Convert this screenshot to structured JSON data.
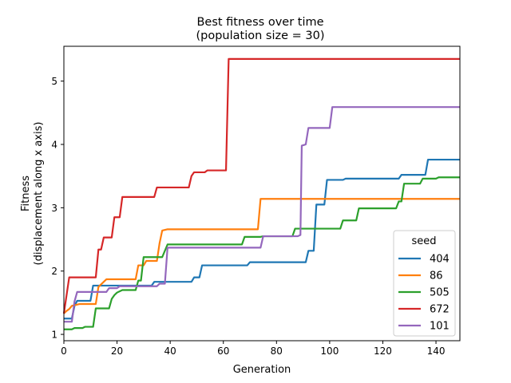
{
  "chart_data": {
    "type": "line",
    "title": "Best fitness over time",
    "subtitle": "(population size = 30)",
    "xlabel": "Generation",
    "ylabel": "Fitness",
    "ylabel2": "(displacement along x axis)",
    "xlim": [
      0,
      149
    ],
    "ylim": [
      0.9,
      5.55
    ],
    "xticks": [
      0,
      20,
      40,
      60,
      80,
      100,
      120,
      140
    ],
    "yticks": [
      1,
      2,
      3,
      4,
      5
    ],
    "grid": false,
    "legend": {
      "title": "seed",
      "placement": "lower-right"
    },
    "series": [
      {
        "name": "404",
        "color": "#1f77b4",
        "points": [
          [
            0,
            1.25
          ],
          [
            3,
            1.25
          ],
          [
            4,
            1.45
          ],
          [
            5,
            1.53
          ],
          [
            10,
            1.53
          ],
          [
            11,
            1.77
          ],
          [
            33,
            1.77
          ],
          [
            34,
            1.83
          ],
          [
            48,
            1.83
          ],
          [
            49,
            1.9
          ],
          [
            51,
            1.9
          ],
          [
            52,
            2.09
          ],
          [
            69,
            2.09
          ],
          [
            70,
            2.14
          ],
          [
            91,
            2.14
          ],
          [
            92,
            2.32
          ],
          [
            94,
            2.32
          ],
          [
            95,
            3.05
          ],
          [
            98,
            3.05
          ],
          [
            99,
            3.44
          ],
          [
            105,
            3.44
          ],
          [
            106,
            3.46
          ],
          [
            126,
            3.46
          ],
          [
            127,
            3.52
          ],
          [
            136,
            3.52
          ],
          [
            137,
            3.76
          ],
          [
            149,
            3.76
          ]
        ]
      },
      {
        "name": "86",
        "color": "#ff7f0e",
        "points": [
          [
            0,
            1.33
          ],
          [
            1,
            1.37
          ],
          [
            2,
            1.4
          ],
          [
            3,
            1.45
          ],
          [
            6,
            1.48
          ],
          [
            12,
            1.48
          ],
          [
            13,
            1.75
          ],
          [
            15,
            1.83
          ],
          [
            16,
            1.87
          ],
          [
            27,
            1.87
          ],
          [
            28,
            2.09
          ],
          [
            30,
            2.09
          ],
          [
            31,
            2.16
          ],
          [
            35,
            2.16
          ],
          [
            36,
            2.44
          ],
          [
            37,
            2.64
          ],
          [
            39,
            2.66
          ],
          [
            73,
            2.66
          ],
          [
            74,
            3.14
          ],
          [
            149,
            3.14
          ]
        ]
      },
      {
        "name": "505",
        "color": "#2ca02c",
        "points": [
          [
            0,
            1.08
          ],
          [
            3,
            1.08
          ],
          [
            4,
            1.1
          ],
          [
            7,
            1.1
          ],
          [
            8,
            1.12
          ],
          [
            11,
            1.12
          ],
          [
            12,
            1.41
          ],
          [
            17,
            1.41
          ],
          [
            18,
            1.56
          ],
          [
            19,
            1.62
          ],
          [
            20,
            1.66
          ],
          [
            22,
            1.7
          ],
          [
            27,
            1.7
          ],
          [
            28,
            1.85
          ],
          [
            29,
            1.85
          ],
          [
            30,
            2.22
          ],
          [
            37,
            2.22
          ],
          [
            39,
            2.42
          ],
          [
            67,
            2.42
          ],
          [
            68,
            2.54
          ],
          [
            74,
            2.54
          ],
          [
            75,
            2.55
          ],
          [
            86,
            2.55
          ],
          [
            87,
            2.67
          ],
          [
            104,
            2.67
          ],
          [
            105,
            2.8
          ],
          [
            110,
            2.8
          ],
          [
            111,
            2.99
          ],
          [
            125,
            2.99
          ],
          [
            126,
            3.1
          ],
          [
            127,
            3.1
          ],
          [
            128,
            3.38
          ],
          [
            134,
            3.38
          ],
          [
            135,
            3.46
          ],
          [
            140,
            3.46
          ],
          [
            141,
            3.48
          ],
          [
            149,
            3.48
          ]
        ]
      },
      {
        "name": "672",
        "color": "#d62728",
        "points": [
          [
            0,
            1.33
          ],
          [
            2,
            1.9
          ],
          [
            12,
            1.9
          ],
          [
            13,
            2.34
          ],
          [
            14,
            2.34
          ],
          [
            15,
            2.53
          ],
          [
            18,
            2.53
          ],
          [
            19,
            2.85
          ],
          [
            21,
            2.85
          ],
          [
            22,
            3.17
          ],
          [
            34,
            3.17
          ],
          [
            35,
            3.32
          ],
          [
            47,
            3.32
          ],
          [
            48,
            3.5
          ],
          [
            49,
            3.56
          ],
          [
            53,
            3.56
          ],
          [
            54,
            3.59
          ],
          [
            61,
            3.59
          ],
          [
            62,
            5.35
          ],
          [
            149,
            5.35
          ]
        ]
      },
      {
        "name": "101",
        "color": "#9467bd",
        "points": [
          [
            0,
            1.2
          ],
          [
            3,
            1.2
          ],
          [
            4,
            1.52
          ],
          [
            5,
            1.67
          ],
          [
            16,
            1.67
          ],
          [
            17,
            1.73
          ],
          [
            20,
            1.73
          ],
          [
            21,
            1.76
          ],
          [
            35,
            1.76
          ],
          [
            36,
            1.8
          ],
          [
            38,
            1.8
          ],
          [
            39,
            2.37
          ],
          [
            74,
            2.37
          ],
          [
            75,
            2.55
          ],
          [
            88,
            2.55
          ],
          [
            89,
            2.57
          ],
          [
            89.5,
            3.98
          ],
          [
            91,
            4.0
          ],
          [
            92,
            4.26
          ],
          [
            100,
            4.26
          ],
          [
            101,
            4.59
          ],
          [
            149,
            4.59
          ]
        ]
      }
    ]
  }
}
